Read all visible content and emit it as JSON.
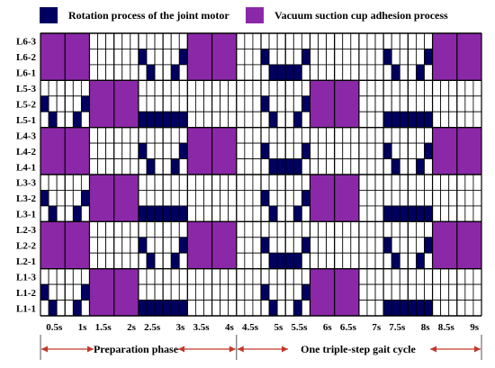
{
  "legend": {
    "motor": {
      "label": "Rotation process of the joint motor",
      "color": "#000060"
    },
    "suction": {
      "label": "Vacuum suction cup adhesion process",
      "color": "#8B28A8"
    }
  },
  "colors": {
    "motor": "#000060",
    "suction": "#8B28A8",
    "cell_border": "#000000",
    "arrow": "#C0392B",
    "phase_divider": "#555555"
  },
  "phases": {
    "preparation": "Preparation phase",
    "gait": "One triple-step gait cycle"
  },
  "chart_data": {
    "type": "heatmap",
    "title": "",
    "xlabel": "",
    "ylabel": "",
    "x_ticks": [
      "0.5s",
      "1s",
      "1.5s",
      "2s",
      "2.5s",
      "3s",
      "3.5s",
      "4s",
      "4.5s",
      "5s",
      "5.5s",
      "6s",
      "6.5s",
      "7s",
      "7.5s",
      "8s",
      "8.5s",
      "9s"
    ],
    "x_range": [
      0,
      9
    ],
    "step_s": 0.5,
    "columns_per_step": 3,
    "rows": [
      "L6-3",
      "L6-2",
      "L6-1",
      "L5-3",
      "L5-2",
      "L5-1",
      "L4-3",
      "L4-2",
      "L4-1",
      "L3-3",
      "L3-2",
      "L3-1",
      "L2-3",
      "L2-2",
      "L2-1",
      "L1-3",
      "L1-2",
      "L1-1"
    ],
    "suction_blocks": [
      {
        "leg": "L6",
        "t_start": 0,
        "t_end": 1
      },
      {
        "leg": "L6",
        "t_start": 3,
        "t_end": 4
      },
      {
        "leg": "L6",
        "t_start": 8,
        "t_end": 9
      },
      {
        "leg": "L5",
        "t_start": 1,
        "t_end": 2
      },
      {
        "leg": "L5",
        "t_start": 5.5,
        "t_end": 6.5
      },
      {
        "leg": "L4",
        "t_start": 0,
        "t_end": 1
      },
      {
        "leg": "L4",
        "t_start": 3,
        "t_end": 4
      },
      {
        "leg": "L4",
        "t_start": 8,
        "t_end": 9
      },
      {
        "leg": "L3",
        "t_start": 1,
        "t_end": 2
      },
      {
        "leg": "L3",
        "t_start": 5.5,
        "t_end": 6.5
      },
      {
        "leg": "L2",
        "t_start": 0,
        "t_end": 1
      },
      {
        "leg": "L2",
        "t_start": 3,
        "t_end": 4
      },
      {
        "leg": "L2",
        "t_start": 8,
        "t_end": 9
      },
      {
        "leg": "L1",
        "t_start": 1,
        "t_end": 2
      },
      {
        "leg": "L1",
        "t_start": 5.5,
        "t_end": 6.5
      }
    ],
    "motor_patterns": {
      "pattern_a_starts": [
        {
          "leg": "L6",
          "t": 2
        },
        {
          "leg": "L6",
          "t": 7
        },
        {
          "leg": "L4",
          "t": 2
        },
        {
          "leg": "L4",
          "t": 7
        },
        {
          "leg": "L2",
          "t": 2
        },
        {
          "leg": "L2",
          "t": 7
        }
      ],
      "pattern_b_starts": [
        {
          "leg": "L6",
          "t": 4.5
        },
        {
          "leg": "L4",
          "t": 4.5
        },
        {
          "leg": "L2",
          "t": 4.5
        }
      ],
      "pattern_c_starts": [
        {
          "leg": "L5",
          "t": 0
        },
        {
          "leg": "L5",
          "t": 4.5
        },
        {
          "leg": "L3",
          "t": 0
        },
        {
          "leg": "L3",
          "t": 4.5
        },
        {
          "leg": "L1",
          "t": 0
        },
        {
          "leg": "L1",
          "t": 4.5
        }
      ],
      "pattern_d_starts": [
        {
          "leg": "L5",
          "t": 2
        },
        {
          "leg": "L5",
          "t": 7
        },
        {
          "leg": "L3",
          "t": 2
        },
        {
          "leg": "L3",
          "t": 7
        },
        {
          "leg": "L1",
          "t": 2
        },
        {
          "leg": "L1",
          "t": 7
        }
      ]
    }
  }
}
